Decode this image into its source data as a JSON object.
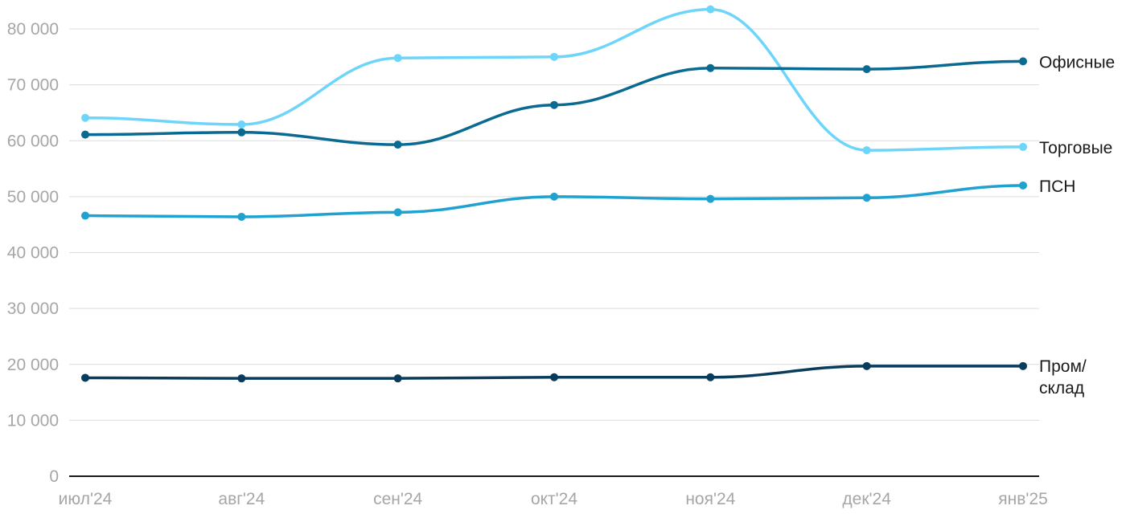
{
  "chart_data": {
    "type": "line",
    "title": "",
    "xlabel": "",
    "ylabel": "",
    "categories": [
      "июл'24",
      "авг'24",
      "сен'24",
      "окт'24",
      "ноя'24",
      "дек'24",
      "янв'25"
    ],
    "ylim": [
      0,
      80000
    ],
    "yticks": [
      {
        "value": 0,
        "label": "0"
      },
      {
        "value": 10000,
        "label": "10 000"
      },
      {
        "value": 20000,
        "label": "20 000"
      },
      {
        "value": 30000,
        "label": "30 000"
      },
      {
        "value": 40000,
        "label": "40 000"
      },
      {
        "value": 50000,
        "label": "50 000"
      },
      {
        "value": 60000,
        "label": "60 000"
      },
      {
        "value": 70000,
        "label": "70 000"
      },
      {
        "value": 80000,
        "label": "80 000"
      }
    ],
    "grid": true,
    "series": [
      {
        "name": "Торговые",
        "label_lines": [
          "Торговые"
        ],
        "color": "#6dd5fa",
        "values": [
          64100,
          62900,
          74800,
          75000,
          83500,
          58300,
          58900
        ]
      },
      {
        "name": "Офисные",
        "label_lines": [
          "Офисные"
        ],
        "color": "#0b6a91",
        "values": [
          61100,
          61500,
          59300,
          66400,
          73000,
          72800,
          74200
        ]
      },
      {
        "name": "ПСН",
        "label_lines": [
          "ПСН"
        ],
        "color": "#1fa2cf",
        "values": [
          46600,
          46400,
          47200,
          50000,
          49600,
          49800,
          52000
        ]
      },
      {
        "name": "Пром/склад",
        "label_lines": [
          "Пром/",
          "склад"
        ],
        "color": "#083b5c",
        "values": [
          17600,
          17500,
          17500,
          17700,
          17700,
          19700,
          19700
        ]
      }
    ]
  }
}
